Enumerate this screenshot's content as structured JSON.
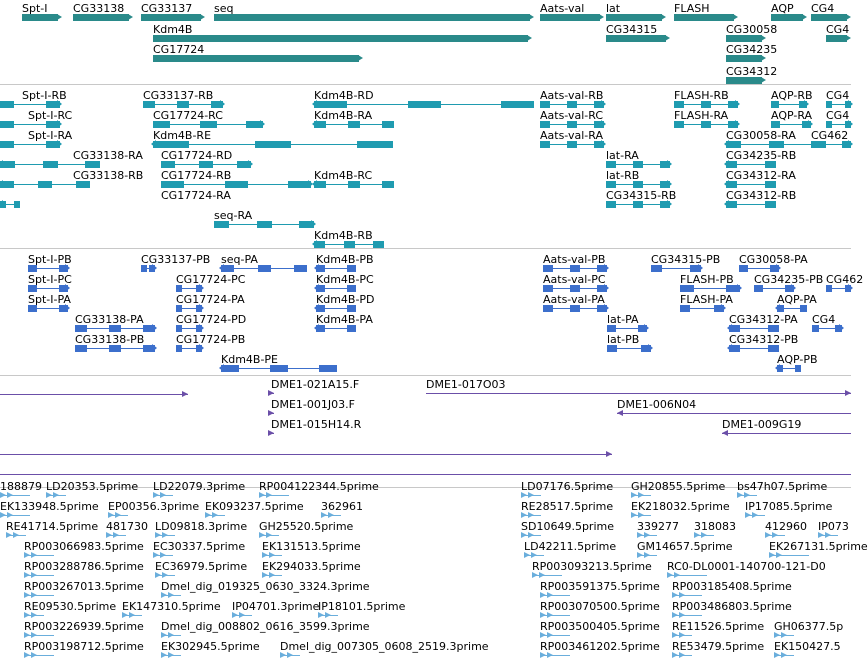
{
  "colors": {
    "gene": "#2a8a8a",
    "transcript": "#1f9bb0",
    "protein": "#3c6fcc",
    "clone": "#6b4fa8",
    "est": "#6aaedc",
    "divider": "#c8c8c8"
  },
  "tracks": {
    "genes": {
      "features": [
        {
          "label": "Spt-I"
        },
        {
          "label": "CG33138"
        },
        {
          "label": "CG33137"
        },
        {
          "label": "seq"
        },
        {
          "label": "Kdm4B"
        },
        {
          "label": "CG17724"
        },
        {
          "label": "Aats-val"
        },
        {
          "label": "lat"
        },
        {
          "label": "CG34315"
        },
        {
          "label": "FLASH"
        },
        {
          "label": "AQP"
        },
        {
          "label": "CG30058"
        },
        {
          "label": "CG34235"
        },
        {
          "label": "CG34312"
        },
        {
          "label": "CG4"
        },
        {
          "label": "CG4"
        }
      ]
    },
    "transcripts": {
      "features": [
        {
          "label": "Spt-I-RB"
        },
        {
          "label": "Spt-I-RC"
        },
        {
          "label": "Spt-I-RA"
        },
        {
          "label": "CG33137-RB"
        },
        {
          "label": "CG17724-RC"
        },
        {
          "label": "Kdm4B-RE"
        },
        {
          "label": "CG33138-RA"
        },
        {
          "label": "CG17724-RD"
        },
        {
          "label": "CG33138-RB"
        },
        {
          "label": "CG17724-RB"
        },
        {
          "label": "CG17724-RA"
        },
        {
          "label": "seq-RA"
        },
        {
          "label": "Kdm4B-RD"
        },
        {
          "label": "Kdm4B-RA"
        },
        {
          "label": "Kdm4B-RC"
        },
        {
          "label": "Kdm4B-RB"
        },
        {
          "label": "Aats-val-RB"
        },
        {
          "label": "Aats-val-RC"
        },
        {
          "label": "Aats-val-RA"
        },
        {
          "label": "lat-RA"
        },
        {
          "label": "lat-RB"
        },
        {
          "label": "CG34315-RB"
        },
        {
          "label": "FLASH-RB"
        },
        {
          "label": "FLASH-RA"
        },
        {
          "label": "AQP-RB"
        },
        {
          "label": "AQP-RA"
        },
        {
          "label": "CG30058-RA"
        },
        {
          "label": "CG34235-RB"
        },
        {
          "label": "CG34312-RA"
        },
        {
          "label": "CG34312-RB"
        },
        {
          "label": "CG4"
        },
        {
          "label": "CG4"
        },
        {
          "label": "CG462"
        }
      ]
    },
    "proteins": {
      "features": [
        {
          "label": "Spt-I-PB"
        },
        {
          "label": "Spt-I-PC"
        },
        {
          "label": "Spt-I-PA"
        },
        {
          "label": "CG33138-PA"
        },
        {
          "label": "CG33138-PB"
        },
        {
          "label": "CG33137-PB"
        },
        {
          "label": "seq-PA"
        },
        {
          "label": "CG17724-PC"
        },
        {
          "label": "CG17724-PA"
        },
        {
          "label": "CG17724-PD"
        },
        {
          "label": "CG17724-PB"
        },
        {
          "label": "Kdm4B-PE"
        },
        {
          "label": "Kdm4B-PB"
        },
        {
          "label": "Kdm4B-PC"
        },
        {
          "label": "Kdm4B-PD"
        },
        {
          "label": "Kdm4B-PA"
        },
        {
          "label": "Aats-val-PB"
        },
        {
          "label": "Aats-val-PC"
        },
        {
          "label": "Aats-val-PA"
        },
        {
          "label": "lat-PA"
        },
        {
          "label": "lat-PB"
        },
        {
          "label": "CG34315-PB"
        },
        {
          "label": "FLASH-PB"
        },
        {
          "label": "FLASH-PA"
        },
        {
          "label": "CG30058-PA"
        },
        {
          "label": "CG34235-PB"
        },
        {
          "label": "AQP-PA"
        },
        {
          "label": "CG34312-PA"
        },
        {
          "label": "CG34312-PB"
        },
        {
          "label": "AQP-PB"
        },
        {
          "label": "CG4"
        },
        {
          "label": "CG462"
        }
      ]
    },
    "clones": {
      "features": [
        {
          "label": ""
        },
        {
          "label": "DME1-021A15.F"
        },
        {
          "label": "DME1-001J03.F"
        },
        {
          "label": "DME1-015H14.R"
        },
        {
          "label": "DME1-017O03"
        },
        {
          "label": "DME1-006N04"
        },
        {
          "label": ""
        },
        {
          "label": "DME1-009G19"
        },
        {
          "label": ""
        }
      ]
    },
    "ests": {
      "features": [
        {
          "label": "188879"
        },
        {
          "label": "LD20353.5prime"
        },
        {
          "label": "LD22079.3prime"
        },
        {
          "label": "RP004122344.5prime"
        },
        {
          "label": "EK133948.5prime"
        },
        {
          "label": "EP00356.3prime"
        },
        {
          "label": "EK093237.5prime"
        },
        {
          "label": "362961"
        },
        {
          "label": "RE41714.5prime"
        },
        {
          "label": "481730"
        },
        {
          "label": "LD09818.3prime"
        },
        {
          "label": "GH25520.5prime"
        },
        {
          "label": "RP003066983.5prime"
        },
        {
          "label": "EC30337.5prime"
        },
        {
          "label": "EK131513.5prime"
        },
        {
          "label": "RP003288786.5prime"
        },
        {
          "label": "EC36979.5prime"
        },
        {
          "label": "EK294033.5prime"
        },
        {
          "label": "RP003267013.5prime"
        },
        {
          "label": "Dmel_dig_019325_0630_3324.3prime"
        },
        {
          "label": "RE09530.5prime"
        },
        {
          "label": "EK147310.5prime"
        },
        {
          "label": "IP04701.3prime"
        },
        {
          "label": "IP18101.5prime"
        },
        {
          "label": "RP003226939.5prime"
        },
        {
          "label": "Dmel_dig_008802_0616_3599.3prime"
        },
        {
          "label": "RP003198712.5prime"
        },
        {
          "label": "EK302945.5prime"
        },
        {
          "label": "Dmel_dig_007305_0608_2519.3prime"
        },
        {
          "label": "LD07176.5prime"
        },
        {
          "label": "GH20855.5prime"
        },
        {
          "label": "bs47h07.5prime"
        },
        {
          "label": "RE28517.5prime"
        },
        {
          "label": "EK218032.5prime"
        },
        {
          "label": "IP17085.5prime"
        },
        {
          "label": "SD10649.5prime"
        },
        {
          "label": "339277"
        },
        {
          "label": "318083"
        },
        {
          "label": "412960"
        },
        {
          "label": "IP073"
        },
        {
          "label": "LD42211.5prime"
        },
        {
          "label": "GM14657.5prime"
        },
        {
          "label": "EK267131.5prime"
        },
        {
          "label": "RP003093213.5prime"
        },
        {
          "label": "RC0-DL0001-140700-121-D0"
        },
        {
          "label": "RP003591375.5prime"
        },
        {
          "label": "RP003185408.5prime"
        },
        {
          "label": "RP003070500.5prime"
        },
        {
          "label": "RP003486803.5prime"
        },
        {
          "label": "RP003500405.5prime"
        },
        {
          "label": "RE11526.5prime"
        },
        {
          "label": "GH06377.5p"
        },
        {
          "label": "RP003461202.5prime"
        },
        {
          "label": "RE53479.5prime"
        },
        {
          "label": "EK150427.5"
        }
      ]
    }
  }
}
